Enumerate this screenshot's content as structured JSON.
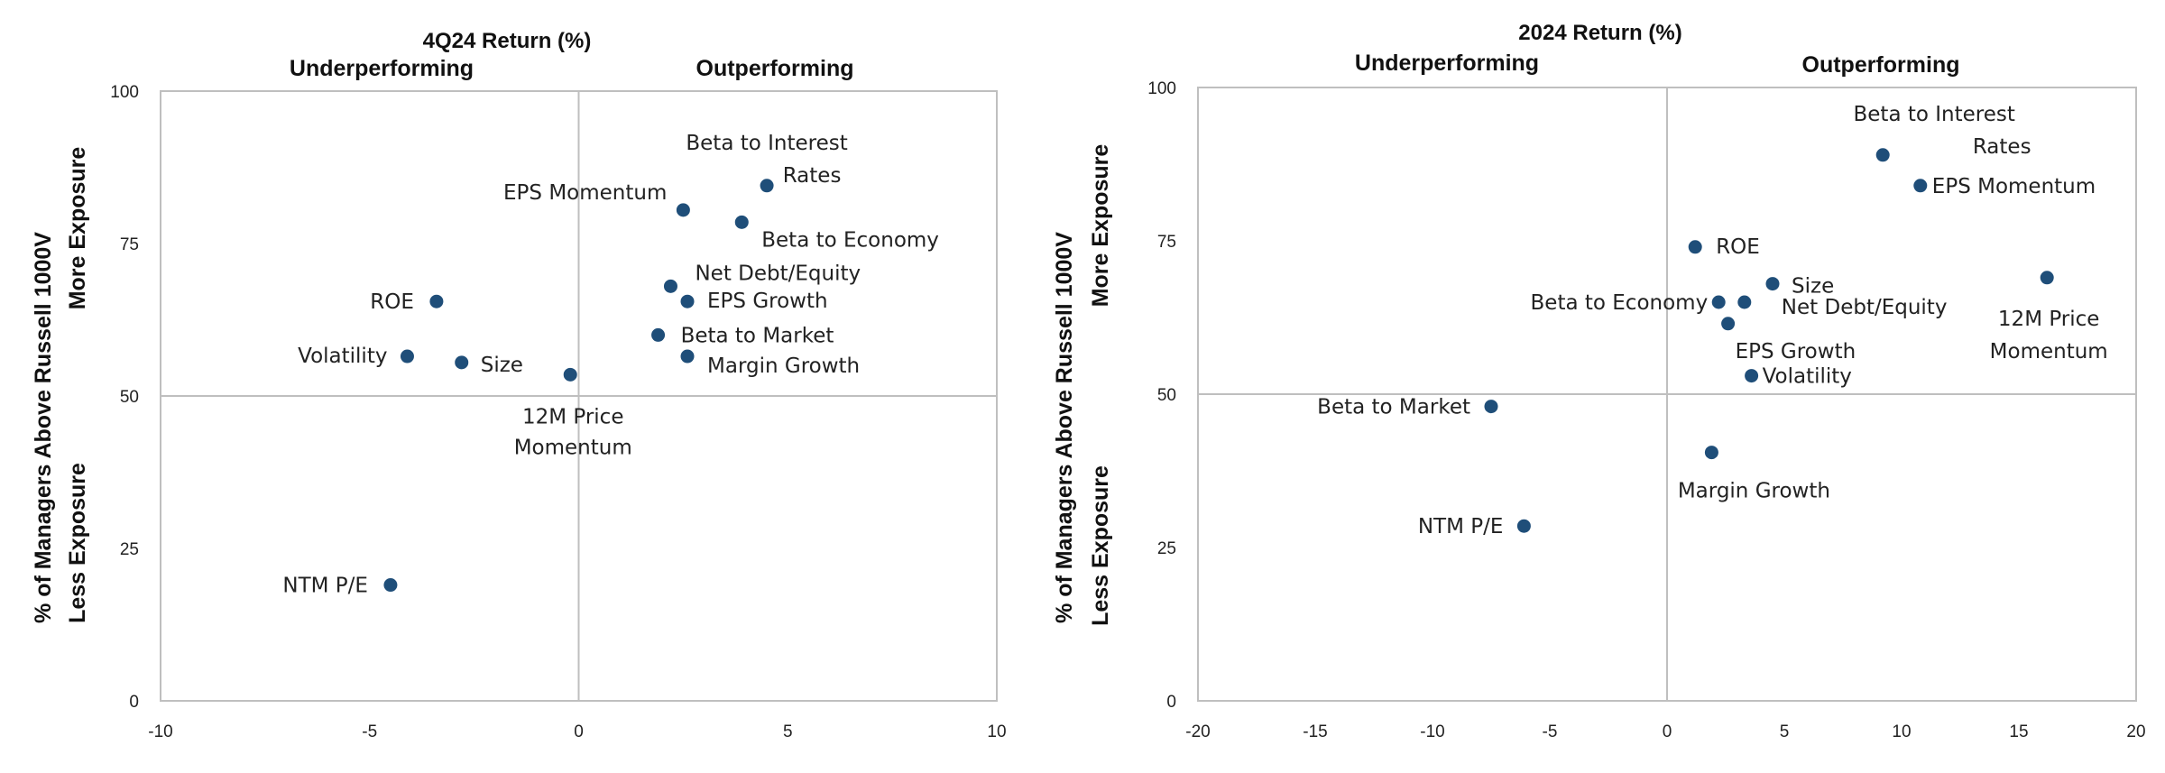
{
  "chart_data": [
    {
      "type": "scatter",
      "title": "4Q24 Return (%)",
      "left_heading": "Underperforming",
      "right_heading": "Outperforming",
      "ylabel": "% of Managers Above Russell 1000V",
      "ylabel_top": "More Exposure",
      "ylabel_bottom": "Less Exposure",
      "xlim": [
        -10,
        10
      ],
      "ylim": [
        0,
        100
      ],
      "xticks": [
        "-10",
        "-5",
        "0",
        "5",
        "10"
      ],
      "yticks": [
        "0",
        "25",
        "50",
        "75",
        "100"
      ],
      "reference_lines": {
        "x": 0,
        "y": 50
      },
      "marker_color": "#1f4e79",
      "points": [
        {
          "lines": [
            "Beta to Interest",
            "Rates"
          ],
          "x": 4.5,
          "y": 84.5
        },
        {
          "lines": [
            "EPS Momentum"
          ],
          "x": 2.5,
          "y": 80.5
        },
        {
          "lines": [
            "Beta to Economy"
          ],
          "x": 3.9,
          "y": 78.5
        },
        {
          "lines": [
            "Net Debt/Equity"
          ],
          "x": 2.2,
          "y": 68.0
        },
        {
          "lines": [
            "EPS Growth"
          ],
          "x": 2.6,
          "y": 65.5
        },
        {
          "lines": [
            "ROE"
          ],
          "x": -3.4,
          "y": 65.5
        },
        {
          "lines": [
            "Beta to Market"
          ],
          "x": 1.9,
          "y": 60.0
        },
        {
          "lines": [
            "Volatility"
          ],
          "x": -4.1,
          "y": 56.5
        },
        {
          "lines": [
            "Size"
          ],
          "x": -2.8,
          "y": 55.5
        },
        {
          "lines": [
            "Margin Growth"
          ],
          "x": 2.6,
          "y": 56.5
        },
        {
          "lines": [
            "12M Price",
            "Momentum"
          ],
          "x": -0.2,
          "y": 53.5
        },
        {
          "lines": [
            "NTM P/E"
          ],
          "x": -4.5,
          "y": 19.0
        }
      ]
    },
    {
      "type": "scatter",
      "title": "2024 Return (%)",
      "left_heading": "Underperforming",
      "right_heading": "Outperforming",
      "ylabel": "% of Managers Above Russell 1000V",
      "ylabel_top": "More Exposure",
      "ylabel_bottom": "Less Exposure",
      "xlim": [
        -20,
        20
      ],
      "ylim": [
        0,
        100
      ],
      "xticks": [
        "-20",
        "-15",
        "-10",
        "-5",
        "0",
        "5",
        "10",
        "15",
        "20"
      ],
      "yticks": [
        "0",
        "25",
        "50",
        "75",
        "100"
      ],
      "reference_lines": {
        "x": 0,
        "y": 50
      },
      "marker_color": "#1f4e79",
      "points": [
        {
          "lines": [
            "Beta to Interest",
            "Rates"
          ],
          "x": 9.2,
          "y": 89.0
        },
        {
          "lines": [
            "EPS Momentum"
          ],
          "x": 10.8,
          "y": 84.0
        },
        {
          "lines": [
            "ROE"
          ],
          "x": 1.2,
          "y": 74.0
        },
        {
          "lines": [
            "Size"
          ],
          "x": 4.5,
          "y": 68.0
        },
        {
          "lines": [
            "12M Price",
            "Momentum"
          ],
          "x": 16.2,
          "y": 69.0
        },
        {
          "lines": [
            "Beta to Economy"
          ],
          "x": 2.2,
          "y": 65.0
        },
        {
          "lines": [
            "Net Debt/Equity"
          ],
          "x": 3.3,
          "y": 65.0
        },
        {
          "lines": [
            "EPS Growth"
          ],
          "x": 2.6,
          "y": 61.5
        },
        {
          "lines": [
            "Volatility"
          ],
          "x": 3.6,
          "y": 53.0
        },
        {
          "lines": [
            "Beta to Market"
          ],
          "x": -7.5,
          "y": 48.0
        },
        {
          "lines": [
            "Margin Growth"
          ],
          "x": 1.9,
          "y": 40.5
        },
        {
          "lines": [
            "NTM P/E"
          ],
          "x": -6.1,
          "y": 28.5
        }
      ]
    }
  ]
}
